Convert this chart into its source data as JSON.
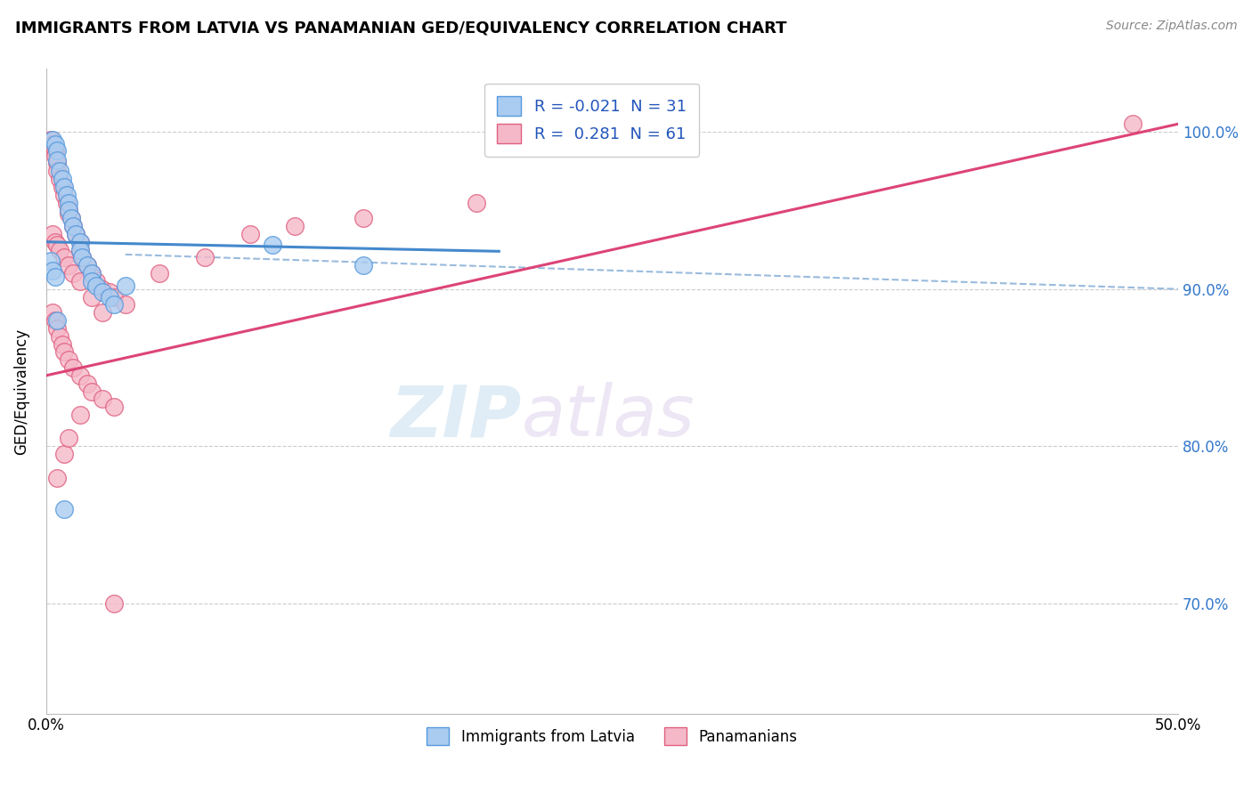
{
  "title": "IMMIGRANTS FROM LATVIA VS PANAMANIAN GED/EQUIVALENCY CORRELATION CHART",
  "source": "Source: ZipAtlas.com",
  "ylabel": "GED/Equivalency",
  "xlim": [
    0.0,
    50.0
  ],
  "ylim": [
    63.0,
    104.0
  ],
  "y_ticks": [
    70.0,
    80.0,
    90.0,
    100.0
  ],
  "legend_entries": [
    {
      "label": "R = -0.021  N = 31",
      "facecolor": "#aaccf0",
      "edgecolor": "#5599dd"
    },
    {
      "label": "R =  0.281  N = 61",
      "facecolor": "#f5b8c8",
      "edgecolor": "#e06080"
    }
  ],
  "legend_labels_bottom": [
    "Immigrants from Latvia",
    "Panamanians"
  ],
  "blue_scatter_color": "#aaccf0",
  "pink_scatter_color": "#f5b8c8",
  "blue_edge_color": "#5599dd",
  "pink_edge_color": "#e06080",
  "blue_line_color": "#4488cc",
  "pink_line_color": "#dd4477",
  "dashed_line_color": "#99bbdd",
  "grid_color": "#cccccc",
  "watermark_zip": "ZIP",
  "watermark_atlas": "atlas",
  "blue_line_x": [
    0.0,
    20.0
  ],
  "blue_line_y": [
    93.0,
    92.4
  ],
  "pink_line_x": [
    0.0,
    50.0
  ],
  "pink_line_y": [
    84.5,
    100.5
  ],
  "dashed_line_x": [
    3.5,
    50.0
  ],
  "dashed_line_y": [
    92.2,
    90.0
  ],
  "blue_points_x": [
    0.3,
    0.4,
    0.5,
    0.5,
    0.6,
    0.7,
    0.8,
    0.9,
    1.0,
    1.0,
    1.1,
    1.2,
    1.3,
    1.5,
    1.5,
    1.6,
    1.8,
    2.0,
    2.0,
    2.2,
    2.5,
    2.8,
    3.0,
    3.5,
    0.2,
    0.3,
    0.4,
    0.5,
    10.0,
    14.0,
    0.8
  ],
  "blue_points_y": [
    99.5,
    99.2,
    98.8,
    98.2,
    97.5,
    97.0,
    96.5,
    96.0,
    95.5,
    95.0,
    94.5,
    94.0,
    93.5,
    93.0,
    92.5,
    92.0,
    91.5,
    91.0,
    90.5,
    90.2,
    89.8,
    89.5,
    89.0,
    90.2,
    91.8,
    91.2,
    90.8,
    88.0,
    92.8,
    91.5,
    76.0
  ],
  "pink_points_x": [
    0.2,
    0.3,
    0.4,
    0.4,
    0.5,
    0.5,
    0.6,
    0.7,
    0.8,
    0.9,
    1.0,
    1.0,
    1.1,
    1.2,
    1.3,
    1.5,
    1.5,
    1.6,
    1.8,
    2.0,
    2.0,
    2.2,
    2.5,
    2.8,
    3.0,
    3.5,
    0.3,
    0.4,
    0.5,
    0.6,
    0.7,
    0.8,
    1.0,
    1.2,
    1.5,
    1.8,
    2.0,
    2.5,
    3.0,
    0.3,
    0.4,
    0.5,
    0.6,
    0.8,
    1.0,
    1.2,
    1.5,
    2.0,
    2.5,
    5.0,
    7.0,
    9.0,
    11.0,
    14.0,
    19.0,
    48.0,
    0.5,
    0.8,
    1.0,
    1.5,
    3.0
  ],
  "pink_points_y": [
    99.5,
    99.2,
    98.8,
    98.5,
    98.0,
    97.5,
    97.0,
    96.5,
    96.0,
    95.5,
    95.0,
    94.8,
    94.5,
    94.0,
    93.5,
    93.0,
    92.5,
    92.0,
    91.5,
    91.0,
    90.8,
    90.5,
    90.0,
    89.8,
    89.5,
    89.0,
    88.5,
    88.0,
    87.5,
    87.0,
    86.5,
    86.0,
    85.5,
    85.0,
    84.5,
    84.0,
    83.5,
    83.0,
    82.5,
    93.5,
    93.0,
    92.8,
    92.5,
    92.0,
    91.5,
    91.0,
    90.5,
    89.5,
    88.5,
    91.0,
    92.0,
    93.5,
    94.0,
    94.5,
    95.5,
    100.5,
    78.0,
    79.5,
    80.5,
    82.0,
    70.0
  ]
}
